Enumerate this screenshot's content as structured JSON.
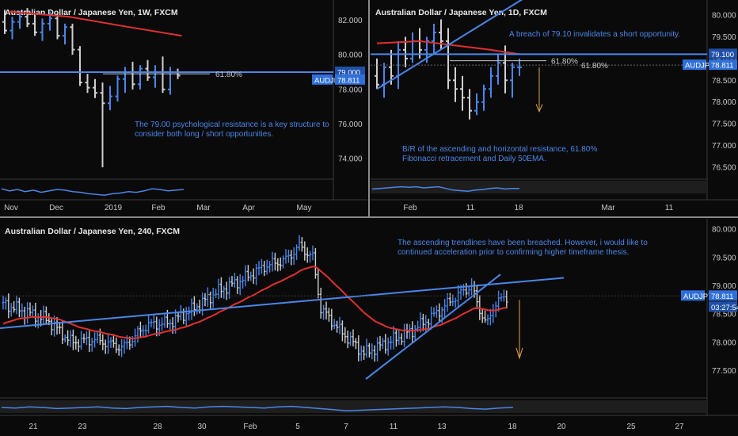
{
  "colors": {
    "bg": "#0a0a0a",
    "up": "#4a86e8",
    "down": "#cfcfcf",
    "ema": "#e03030",
    "sma": "#c8c8c8",
    "trend": "#4a86e8",
    "arrow": "#e0a050",
    "panel_border": "#3a3a3a",
    "tag": "#2f6fd8",
    "osc": "#4a86e8"
  },
  "chart_data": [
    {
      "id": "weekly",
      "type": "ohlc",
      "title": "Australian Dollar / Japanese Yen, 1W, FXCM",
      "x_ticks": [
        "Nov",
        "Dec",
        "2019",
        "Feb",
        "Mar",
        "Apr",
        "May"
      ],
      "y_ticks": [
        "82.000",
        "80.000",
        "78.000",
        "76.000",
        "74.000"
      ],
      "ylim": [
        73.0,
        82.8
      ],
      "price_tag": "AUDJPY",
      "price_value": "78.811",
      "level_tag": "79.000",
      "fib_label": "61.80%",
      "annotation": "The 79.00 psychological resistance is a key structure to consider both long / short opportunities.",
      "bars": [
        {
          "o": 81.9,
          "h": 82.6,
          "l": 81.2,
          "c": 81.4
        },
        {
          "o": 81.4,
          "h": 82.2,
          "l": 80.9,
          "c": 81.9
        },
        {
          "o": 81.9,
          "h": 82.5,
          "l": 81.5,
          "c": 82.2
        },
        {
          "o": 82.2,
          "h": 82.7,
          "l": 81.6,
          "c": 81.8
        },
        {
          "o": 81.8,
          "h": 82.3,
          "l": 81.1,
          "c": 81.3
        },
        {
          "o": 81.3,
          "h": 82.1,
          "l": 80.8,
          "c": 81.8
        },
        {
          "o": 81.8,
          "h": 82.5,
          "l": 81.4,
          "c": 82.1
        },
        {
          "o": 82.1,
          "h": 82.4,
          "l": 80.9,
          "c": 81.1
        },
        {
          "o": 81.1,
          "h": 81.8,
          "l": 80.6,
          "c": 81.6
        },
        {
          "o": 81.6,
          "h": 81.8,
          "l": 80.0,
          "c": 80.3
        },
        {
          "o": 80.3,
          "h": 80.5,
          "l": 78.2,
          "c": 78.4
        },
        {
          "o": 78.4,
          "h": 78.9,
          "l": 77.8,
          "c": 78.1
        },
        {
          "o": 78.1,
          "h": 78.6,
          "l": 77.5,
          "c": 77.8
        },
        {
          "o": 77.8,
          "h": 78.4,
          "l": 73.5,
          "c": 77.2
        },
        {
          "o": 77.2,
          "h": 78.2,
          "l": 76.8,
          "c": 77.6
        },
        {
          "o": 77.6,
          "h": 78.8,
          "l": 77.3,
          "c": 78.6
        },
        {
          "o": 78.6,
          "h": 79.3,
          "l": 77.8,
          "c": 79.0
        },
        {
          "o": 79.0,
          "h": 79.6,
          "l": 78.0,
          "c": 78.3
        },
        {
          "o": 78.3,
          "h": 79.4,
          "l": 78.0,
          "c": 79.2
        },
        {
          "o": 79.2,
          "h": 79.7,
          "l": 78.5,
          "c": 78.7
        },
        {
          "o": 78.7,
          "h": 79.4,
          "l": 78.1,
          "c": 79.0
        },
        {
          "o": 79.0,
          "h": 79.9,
          "l": 77.8,
          "c": 78.0
        },
        {
          "o": 78.0,
          "h": 79.3,
          "l": 77.7,
          "c": 79.0
        },
        {
          "o": 79.0,
          "h": 79.2,
          "l": 78.6,
          "c": 78.8
        }
      ],
      "ema": [
        {
          "i": 0,
          "v": 82.5
        },
        {
          "i": 8,
          "v": 82.2
        },
        {
          "i": 16,
          "v": 81.6
        },
        {
          "i": 23,
          "v": 81.1
        }
      ],
      "fib_level": 78.9,
      "osc": [
        0.55,
        0.4,
        0.5,
        0.35,
        0.45,
        0.3,
        0.4,
        0.5,
        0.45,
        0.35,
        0.3,
        0.2,
        0.15,
        0.1,
        0.2,
        0.25,
        0.35,
        0.3,
        0.4,
        0.55,
        0.5,
        0.4,
        0.45,
        0.5
      ]
    },
    {
      "id": "daily",
      "type": "ohlc",
      "title": "Australian Dollar / Japanese Yen, 1D, FXCM",
      "x_ticks": [
        "Feb",
        "11",
        "18",
        "Mar",
        "11"
      ],
      "y_ticks": [
        "80.000",
        "79.500",
        "79.000",
        "78.500",
        "78.000",
        "77.500",
        "77.000",
        "76.500"
      ],
      "ylim": [
        76.3,
        80.2
      ],
      "price_tag": "AUDJPY",
      "price_value": "78.811",
      "level_tag": "79.100",
      "fib_label": "61.80%",
      "fib_label_right": "61.80%",
      "annotation_top": "A breach of 79.10 invalidates a short opportunity.",
      "annotation_bottom": "B/R of the ascending and horizontal resistance, 61.80% Fibonacci retracement and Daily 50EMA.",
      "bars": [
        {
          "o": 78.6,
          "h": 79.0,
          "l": 78.3,
          "c": 78.4
        },
        {
          "o": 78.4,
          "h": 78.9,
          "l": 78.1,
          "c": 78.8
        },
        {
          "o": 78.8,
          "h": 79.2,
          "l": 78.4,
          "c": 78.6
        },
        {
          "o": 78.6,
          "h": 79.4,
          "l": 78.3,
          "c": 79.2
        },
        {
          "o": 79.2,
          "h": 79.5,
          "l": 78.8,
          "c": 79.0
        },
        {
          "o": 79.0,
          "h": 79.6,
          "l": 78.9,
          "c": 79.4
        },
        {
          "o": 79.4,
          "h": 79.7,
          "l": 79.0,
          "c": 79.2
        },
        {
          "o": 79.2,
          "h": 79.5,
          "l": 78.9,
          "c": 79.4
        },
        {
          "o": 79.4,
          "h": 79.8,
          "l": 79.1,
          "c": 79.6
        },
        {
          "o": 79.6,
          "h": 79.9,
          "l": 79.2,
          "c": 79.4
        },
        {
          "o": 79.4,
          "h": 79.7,
          "l": 78.3,
          "c": 78.5
        },
        {
          "o": 78.5,
          "h": 78.8,
          "l": 78.0,
          "c": 78.3
        },
        {
          "o": 78.3,
          "h": 78.6,
          "l": 77.8,
          "c": 78.1
        },
        {
          "o": 78.1,
          "h": 78.3,
          "l": 77.6,
          "c": 77.8
        },
        {
          "o": 77.8,
          "h": 78.2,
          "l": 77.7,
          "c": 78.0
        },
        {
          "o": 78.0,
          "h": 78.4,
          "l": 77.8,
          "c": 78.3
        },
        {
          "o": 78.3,
          "h": 78.8,
          "l": 78.1,
          "c": 78.6
        },
        {
          "o": 78.6,
          "h": 79.1,
          "l": 78.4,
          "c": 78.9
        },
        {
          "o": 78.9,
          "h": 79.3,
          "l": 78.2,
          "c": 78.5
        },
        {
          "o": 78.5,
          "h": 78.9,
          "l": 78.1,
          "c": 78.8
        },
        {
          "o": 78.8,
          "h": 79.0,
          "l": 78.6,
          "c": 78.8
        }
      ],
      "ema": [
        {
          "i": 0,
          "v": 79.35
        },
        {
          "i": 6,
          "v": 79.4
        },
        {
          "i": 11,
          "v": 79.3
        },
        {
          "i": 16,
          "v": 79.2
        },
        {
          "i": 20,
          "v": 79.1
        }
      ],
      "trend": [
        {
          "i": 0,
          "v": 78.3
        },
        {
          "i": 14,
          "v": 80.0
        }
      ],
      "level": 79.1,
      "fib_level": 78.95,
      "osc": [
        0.4,
        0.45,
        0.5,
        0.55,
        0.6,
        0.55,
        0.6,
        0.5,
        0.55,
        0.6,
        0.45,
        0.3,
        0.25,
        0.2,
        0.3,
        0.35,
        0.45,
        0.5,
        0.4,
        0.45,
        0.45
      ]
    },
    {
      "id": "h4",
      "type": "ohlc",
      "title": "Australian Dollar / Japanese Yen, 240, FXCM",
      "x_ticks": [
        "21",
        "23",
        "28",
        "30",
        "Feb",
        "5",
        "7",
        "11",
        "13",
        "18",
        "20",
        "25",
        "27"
      ],
      "y_ticks": [
        "80.000",
        "79.500",
        "79.000",
        "78.500",
        "78.000",
        "77.500"
      ],
      "ylim": [
        77.1,
        80.1
      ],
      "price_tag": "AUDJPY",
      "price_value": "78.811",
      "countdown": "03:27:54",
      "annotation": "The ascending trendlines have been breached. However, i would like to continued acceleration prior to confirming higher timeframe thesis.",
      "osc": [
        0.5,
        0.45,
        0.55,
        0.5,
        0.4,
        0.45,
        0.5,
        0.55,
        0.45,
        0.4,
        0.5,
        0.55,
        0.6,
        0.5,
        0.45,
        0.55,
        0.6,
        0.55,
        0.5,
        0.45,
        0.55,
        0.6,
        0.5,
        0.4,
        0.3,
        0.2,
        0.25,
        0.3,
        0.35,
        0.4,
        0.45,
        0.5,
        0.55,
        0.5,
        0.4,
        0.35,
        0.45,
        0.5
      ]
    }
  ]
}
